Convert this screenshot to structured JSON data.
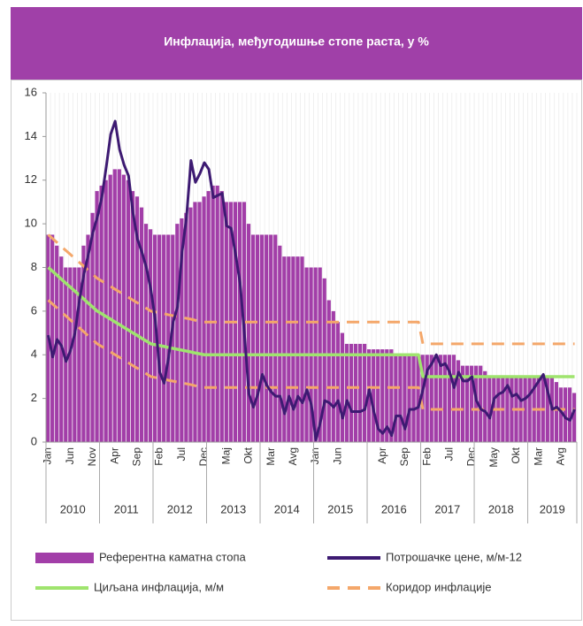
{
  "chart_data": {
    "type": "combo",
    "title": "Инфлација, међугодишње стопе раста, у %",
    "categories": [
      "Jan",
      null,
      null,
      null,
      null,
      "Jun",
      null,
      null,
      null,
      null,
      "Nov",
      null,
      null,
      null,
      null,
      "Apr",
      null,
      null,
      null,
      null,
      "Sep",
      null,
      null,
      null,
      null,
      "Feb",
      null,
      null,
      null,
      null,
      "Jul",
      null,
      null,
      null,
      null,
      "Dec",
      null,
      null,
      null,
      null,
      "Maj",
      null,
      null,
      null,
      null,
      "Okt",
      null,
      null,
      null,
      null,
      "Mar",
      null,
      null,
      null,
      null,
      "Avg",
      null,
      null,
      null,
      null,
      "Jan",
      null,
      null,
      null,
      null,
      "Jun",
      null,
      null,
      null,
      null,
      null,
      null,
      null,
      null,
      null,
      "Apr",
      null,
      null,
      null,
      null,
      "Sep",
      null,
      null,
      null,
      null,
      "Feb",
      null,
      null,
      null,
      null,
      "Jul",
      null,
      null,
      null,
      null,
      "Dec",
      null,
      null,
      null,
      null,
      "May",
      null,
      null,
      null,
      null,
      "Okt",
      null,
      null,
      null,
      null,
      "Mar",
      null,
      null,
      null,
      null,
      "Avg",
      null,
      null,
      null
    ],
    "years": [
      "2010",
      "2011",
      "2012",
      "2013",
      "2014",
      "2015",
      "2016",
      "2017",
      "2018",
      "2019"
    ],
    "ylim": [
      0,
      16
    ],
    "yticks": [
      0,
      2,
      4,
      6,
      8,
      10,
      12,
      14,
      16
    ],
    "series": [
      {
        "name": "Референтна каматна стопа",
        "type": "bar",
        "color": "#a23ea8",
        "values": [
          9.5,
          9.5,
          9.0,
          8.5,
          8.0,
          8.0,
          8.0,
          8.0,
          9.0,
          9.5,
          10.5,
          11.5,
          11.75,
          12.0,
          12.25,
          12.5,
          12.5,
          12.25,
          12.0,
          11.5,
          11.25,
          10.75,
          10.0,
          9.75,
          9.5,
          9.5,
          9.5,
          9.5,
          9.5,
          10.0,
          10.25,
          10.5,
          10.75,
          11.0,
          11.0,
          11.25,
          11.5,
          11.75,
          11.75,
          11.5,
          11.0,
          11.0,
          11.0,
          11.0,
          11.0,
          10.0,
          9.5,
          9.5,
          9.5,
          9.5,
          9.5,
          9.5,
          9.0,
          8.5,
          8.5,
          8.5,
          8.5,
          8.5,
          8.0,
          8.0,
          8.0,
          8.0,
          7.5,
          6.5,
          6.0,
          5.5,
          5.0,
          4.5,
          4.5,
          4.5,
          4.5,
          4.5,
          4.25,
          4.25,
          4.25,
          4.25,
          4.25,
          4.25,
          4.0,
          4.0,
          4.0,
          4.0,
          4.0,
          4.0,
          4.0,
          4.0,
          4.0,
          4.0,
          4.0,
          4.0,
          4.0,
          4.0,
          3.75,
          3.5,
          3.5,
          3.5,
          3.5,
          3.5,
          3.25,
          3.0,
          3.0,
          3.0,
          3.0,
          3.0,
          3.0,
          3.0,
          3.0,
          3.0,
          3.0,
          3.0,
          3.0,
          3.0,
          3.0,
          3.0,
          2.75,
          2.5,
          2.5,
          2.5,
          2.25
        ]
      },
      {
        "name": "Потрошачке цене, м/м-12",
        "type": "line",
        "color": "#3d1a72",
        "values": [
          4.9,
          3.9,
          4.7,
          4.4,
          3.7,
          4.2,
          5.0,
          6.5,
          7.7,
          8.6,
          9.6,
          10.3,
          11.2,
          12.6,
          14.1,
          14.7,
          13.4,
          12.7,
          12.2,
          10.5,
          9.3,
          8.7,
          8.0,
          7.0,
          5.6,
          3.2,
          2.7,
          3.9,
          5.5,
          6.2,
          8.7,
          10.3,
          12.9,
          11.9,
          12.3,
          12.8,
          12.5,
          11.2,
          11.3,
          11.4,
          9.9,
          9.8,
          8.6,
          7.3,
          4.9,
          2.2,
          1.6,
          2.2,
          3.1,
          2.6,
          2.3,
          2.1,
          2.1,
          1.3,
          2.1,
          1.5,
          2.1,
          1.8,
          2.4,
          1.7,
          0.1,
          0.9,
          1.9,
          1.8,
          1.6,
          1.9,
          1.1,
          1.9,
          1.4,
          1.4,
          1.4,
          1.5,
          2.4,
          1.4,
          0.6,
          0.4,
          0.7,
          0.3,
          1.2,
          1.2,
          0.6,
          1.5,
          1.5,
          1.6,
          2.4,
          3.3,
          3.6,
          4.0,
          3.5,
          3.6,
          3.2,
          2.5,
          3.2,
          2.8,
          2.8,
          3.0,
          1.9,
          1.5,
          1.4,
          1.1,
          2.0,
          2.2,
          2.3,
          2.6,
          2.1,
          2.2,
          1.9,
          2.0,
          2.2,
          2.5,
          2.8,
          3.1,
          2.3,
          1.5,
          1.6,
          1.4,
          1.1,
          1.0,
          1.5
        ]
      },
      {
        "name": "Циљана инфлација, м/м",
        "type": "line",
        "color": "#9fe46e",
        "values": [
          8,
          7.82,
          7.64,
          7.45,
          7.27,
          7.09,
          6.91,
          6.73,
          6.55,
          6.36,
          6.18,
          6.0,
          5.88,
          5.75,
          5.63,
          5.5,
          5.38,
          5.25,
          5.13,
          5.0,
          4.88,
          4.75,
          4.63,
          4.5,
          4.46,
          4.42,
          4.38,
          4.33,
          4.29,
          4.25,
          4.21,
          4.17,
          4.13,
          4.08,
          4.04,
          4.0,
          4,
          4,
          4,
          4,
          4,
          4,
          4,
          4,
          4,
          4,
          4,
          4,
          4,
          4,
          4,
          4,
          4,
          4,
          4,
          4,
          4,
          4,
          4,
          4,
          4,
          4,
          4,
          4,
          4,
          4,
          4,
          4,
          4,
          4,
          4,
          4,
          4,
          4,
          4,
          4,
          4,
          4,
          4,
          4,
          4,
          4,
          4,
          4,
          3,
          3,
          3,
          3,
          3,
          3,
          3,
          3,
          3,
          3,
          3,
          3,
          3,
          3,
          3,
          3,
          3,
          3,
          3,
          3,
          3,
          3,
          3,
          3,
          3,
          3,
          3,
          3,
          3,
          3,
          3,
          3,
          3,
          3,
          3
        ]
      },
      {
        "name": "Коридор инфлације",
        "type": "band",
        "color": "#f4a76a",
        "dashed": true,
        "upper": [
          9.5,
          9.32,
          9.14,
          8.95,
          8.77,
          8.59,
          8.41,
          8.23,
          8.05,
          7.86,
          7.68,
          7.5,
          7.38,
          7.25,
          7.13,
          7.0,
          6.88,
          6.75,
          6.63,
          6.5,
          6.38,
          6.25,
          6.13,
          6.0,
          5.96,
          5.92,
          5.88,
          5.83,
          5.79,
          5.75,
          5.71,
          5.67,
          5.63,
          5.58,
          5.54,
          5.5,
          5.5,
          5.5,
          5.5,
          5.5,
          5.5,
          5.5,
          5.5,
          5.5,
          5.5,
          5.5,
          5.5,
          5.5,
          5.5,
          5.5,
          5.5,
          5.5,
          5.5,
          5.5,
          5.5,
          5.5,
          5.5,
          5.5,
          5.5,
          5.5,
          5.5,
          5.5,
          5.5,
          5.5,
          5.5,
          5.5,
          5.5,
          5.5,
          5.5,
          5.5,
          5.5,
          5.5,
          5.5,
          5.5,
          5.5,
          5.5,
          5.5,
          5.5,
          5.5,
          5.5,
          5.5,
          5.5,
          5.5,
          5.5,
          4.5,
          4.5,
          4.5,
          4.5,
          4.5,
          4.5,
          4.5,
          4.5,
          4.5,
          4.5,
          4.5,
          4.5,
          4.5,
          4.5,
          4.5,
          4.5,
          4.5,
          4.5,
          4.5,
          4.5,
          4.5,
          4.5,
          4.5,
          4.5,
          4.5,
          4.5,
          4.5,
          4.5,
          4.5,
          4.5,
          4.5,
          4.5,
          4.5,
          4.5,
          4.5
        ],
        "lower": [
          6.5,
          6.32,
          6.14,
          5.95,
          5.77,
          5.59,
          5.41,
          5.23,
          5.05,
          4.86,
          4.68,
          4.5,
          4.38,
          4.25,
          4.13,
          4.0,
          3.88,
          3.75,
          3.63,
          3.5,
          3.38,
          3.25,
          3.13,
          3.0,
          2.96,
          2.92,
          2.88,
          2.83,
          2.79,
          2.75,
          2.71,
          2.67,
          2.63,
          2.58,
          2.54,
          2.5,
          2.5,
          2.5,
          2.5,
          2.5,
          2.5,
          2.5,
          2.5,
          2.5,
          2.5,
          2.5,
          2.5,
          2.5,
          2.5,
          2.5,
          2.5,
          2.5,
          2.5,
          2.5,
          2.5,
          2.5,
          2.5,
          2.5,
          2.5,
          2.5,
          2.5,
          2.5,
          2.5,
          2.5,
          2.5,
          2.5,
          2.5,
          2.5,
          2.5,
          2.5,
          2.5,
          2.5,
          2.5,
          2.5,
          2.5,
          2.5,
          2.5,
          2.5,
          2.5,
          2.5,
          2.5,
          2.5,
          2.5,
          2.5,
          1.5,
          1.5,
          1.5,
          1.5,
          1.5,
          1.5,
          1.5,
          1.5,
          1.5,
          1.5,
          1.5,
          1.5,
          1.5,
          1.5,
          1.5,
          1.5,
          1.5,
          1.5,
          1.5,
          1.5,
          1.5,
          1.5,
          1.5,
          1.5,
          1.5,
          1.5,
          1.5,
          1.5,
          1.5,
          1.5,
          1.5,
          1.5,
          1.5,
          1.5,
          1.5
        ]
      }
    ]
  }
}
